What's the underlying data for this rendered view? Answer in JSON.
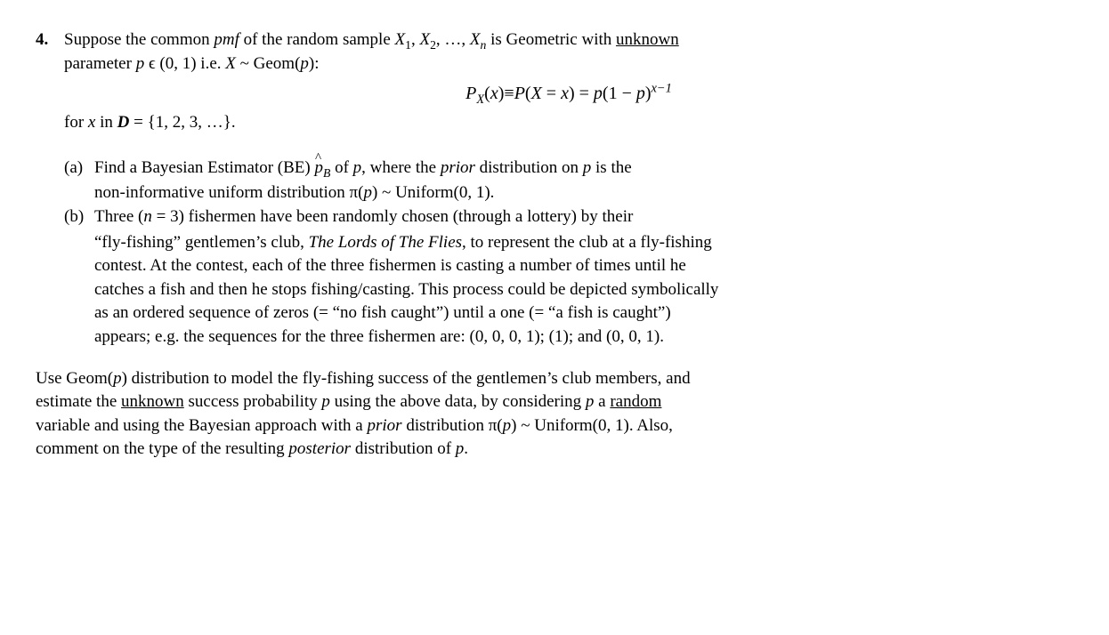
{
  "problem": {
    "number": "4.",
    "intro_prefix": "Suppose the common ",
    "intro_pmf": "pmf",
    "intro_mid1": " of the random sample ",
    "intro_vars": "X",
    "intro_sub1": "1",
    "intro_comma1": ", ",
    "intro_sub2": "2",
    "intro_comma2": ", …, ",
    "intro_subn": "n",
    "intro_mid2": " is Geometric with ",
    "intro_unknown": "unknown",
    "intro_line2a": "parameter ",
    "intro_p": "p",
    "intro_line2b": " ϵ (0, 1) i.e. ",
    "intro_X": "X",
    "intro_line2c": " ~ Geom(",
    "intro_line2d": "):",
    "equation": {
      "lhs1": "P",
      "lhs1_sub": "X",
      "lhs1_arg_open": "(",
      "lhs1_arg": "x",
      "lhs1_arg_close": ")",
      "eq1": "≡",
      "mid1": "P",
      "mid1_open": "(",
      "mid1_X": "X",
      "mid1_eq": " = ",
      "mid1_x": "x",
      "mid1_close": ")",
      "eq2": " = ",
      "rhs_p": "p",
      "rhs_open": "(1 − ",
      "rhs_p2": "p",
      "rhs_close": ")",
      "rhs_exp": "x−1"
    },
    "for_line_a": "for ",
    "for_line_x": "x",
    "for_line_b": " in ",
    "for_line_D": "D",
    "for_line_c": " = {1, 2, 3, …}.",
    "part_a": {
      "label": "(a)",
      "t1": "Find a Bayesian Estimator (BE) ",
      "phat_p": "p",
      "phat_sub": "B",
      "t2": " of ",
      "t2_p": "p",
      "t3": ", where the ",
      "t3_prior": "prior",
      "t4": " distribution on ",
      "t4_p": "p",
      "t5": " is the",
      "line2a": "non-informative uniform distribution π(",
      "line2_p": "p",
      "line2b": ") ~ Uniform(0, 1)."
    },
    "part_b": {
      "label": "(b)",
      "t1": "Three (",
      "t1_n": "n",
      "t2": " = 3) fishermen have been randomly chosen (through a lottery) by their",
      "l2a": "“fly-fishing” gentlemen’s club, ",
      "l2_title": "The Lords of The Flies",
      "l2b": ", to represent the club at a fly-fishing",
      "l3": "contest. At the contest, each of the three fishermen is casting a number of times until he",
      "l4": "catches a fish and then he stops fishing/casting. This process could be depicted symbolically",
      "l5": "as an ordered sequence of zeros (= “no fish caught”) until a one (= “a fish is caught”)",
      "l6": "appears; e.g. the sequences for the three fishermen are: (0, 0, 0, 1); (1); and (0, 0, 1)."
    },
    "closing": {
      "l1a": "Use Geom(",
      "l1_p": "p",
      "l1b": ") distribution to model the fly-fishing success of the gentlemen’s club members, and",
      "l2a": "estimate the ",
      "l2_unknown": "unknown",
      "l2b": " success probability ",
      "l2_p": "p",
      "l2c": " using the above data, by considering ",
      "l2_p2": "p",
      "l2d": " a ",
      "l2_random": "random",
      "l3a": "variable and using the Bayesian approach with a ",
      "l3_prior": "prior",
      "l3b": " distribution π(",
      "l3_p": "p",
      "l3c": ") ~ Uniform(0, 1). Also,",
      "l4a": "comment on the type of the resulting ",
      "l4_posterior": "posterior",
      "l4b": " distribution of ",
      "l4_p": "p",
      "l4c": "."
    }
  }
}
